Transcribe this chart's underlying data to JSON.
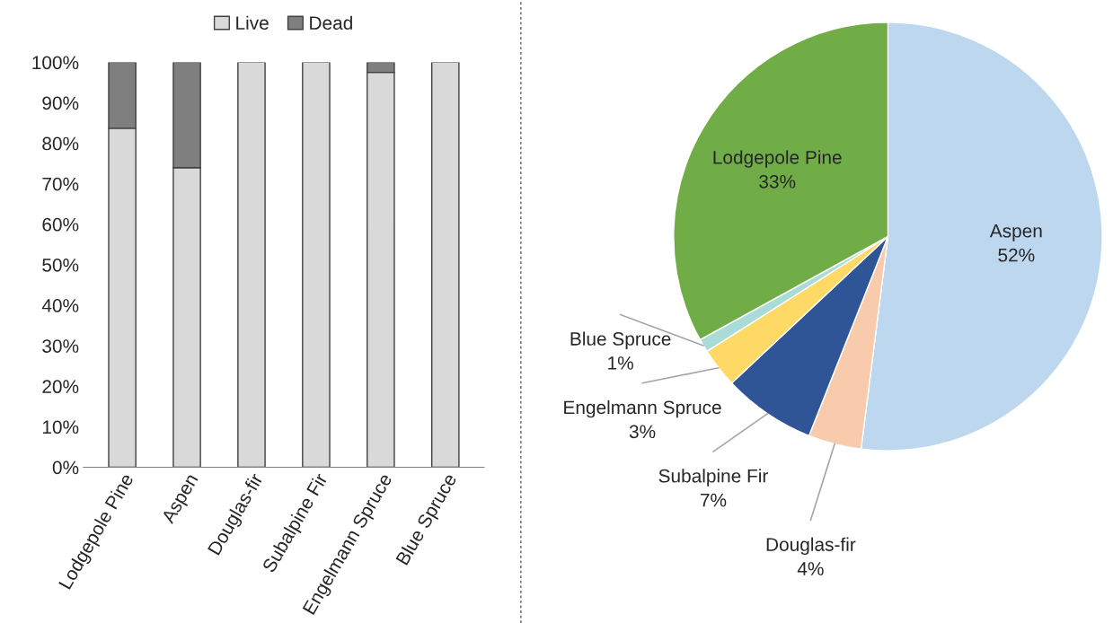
{
  "chart_data": [
    {
      "type": "bar",
      "stacked": true,
      "categories": [
        "Lodgepole Pine",
        "Aspen",
        "Douglas-fir",
        "Subalpine Fir",
        "Engelmann Spruce",
        "Blue Spruce"
      ],
      "series": [
        {
          "name": "Live",
          "color": "#d9d9d9",
          "values": [
            83.7,
            74,
            100,
            100,
            97.5,
            100
          ]
        },
        {
          "name": "Dead",
          "color": "#7f7f7f",
          "values": [
            16.3,
            26,
            0,
            0,
            2.5,
            0
          ]
        }
      ],
      "ylim": [
        0,
        100
      ],
      "yticks": [
        {
          "value": 0,
          "label": "0%"
        },
        {
          "value": 10,
          "label": "10%"
        },
        {
          "value": 20,
          "label": "20%"
        },
        {
          "value": 30,
          "label": "30%"
        },
        {
          "value": 40,
          "label": "40%"
        },
        {
          "value": 50,
          "label": "50%"
        },
        {
          "value": 60,
          "label": "60%"
        },
        {
          "value": 70,
          "label": "70%"
        },
        {
          "value": 80,
          "label": "80%"
        },
        {
          "value": 90,
          "label": "90%"
        },
        {
          "value": 100,
          "label": "100%"
        }
      ],
      "grid": false,
      "legend": "top"
    },
    {
      "type": "pie",
      "categories": [
        "Aspen",
        "Douglas-fir",
        "Subalpine Fir",
        "Engelmann Spruce",
        "Blue Spruce",
        "Lodgepole Pine"
      ],
      "values": [
        52,
        4,
        7,
        3,
        1,
        33
      ],
      "value_labels": [
        "52%",
        "4%",
        "7%",
        "3%",
        "1%",
        "33%"
      ],
      "colors": [
        "#bdd7ee",
        "#f8cbad",
        "#2f5597",
        "#ffd966",
        "#a9dcd6",
        "#70ad47"
      ]
    }
  ]
}
